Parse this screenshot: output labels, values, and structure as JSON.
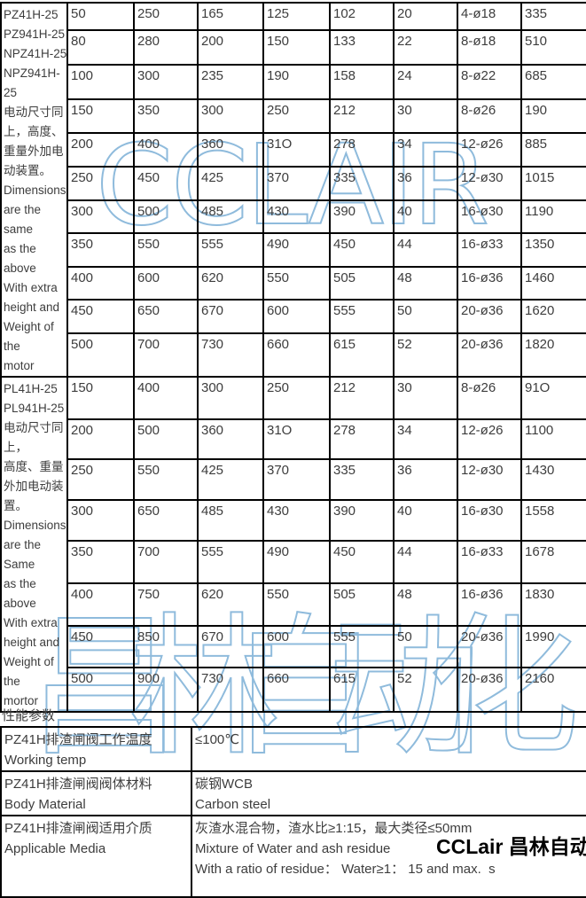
{
  "watermarks": {
    "latin": "CCLAIR",
    "cjk": "昌林自动化",
    "stroke_color": "#8fbbdc"
  },
  "brand": {
    "text": "CCLair 昌林自动化"
  },
  "section_label": "性能参数",
  "spec_table": {
    "groups": [
      {
        "label": "PZ41H-25\nPZ941H-25\nNPZ41H-25\nNPZ941H-\n25\n电动尺寸同\n上，高度、\n重量外加电\n动装置。\nDimensions\nare the\nsame\nas the\nabove\nWith extra\nheight and\nWeight of\nthe\nmotor",
        "rows": [
          [
            "50",
            "250",
            "165",
            "125",
            "102",
            "20",
            "4-ø18",
            "335"
          ],
          [
            "80",
            "280",
            "200",
            "150",
            "133",
            "22",
            "8-ø18",
            "510"
          ],
          [
            "100",
            "300",
            "235",
            "190",
            "158",
            "24",
            "8-ø22",
            "685"
          ],
          [
            "150",
            "350",
            "300",
            "250",
            "212",
            "30",
            "8-ø26",
            "190"
          ],
          [
            "200",
            "400",
            "360",
            "31O",
            "278",
            "34",
            "12-ø26",
            "885"
          ],
          [
            "250",
            "450",
            "425",
            "370",
            "335",
            "36",
            "12-ø30",
            "1015"
          ],
          [
            "300",
            "500",
            "485",
            "430",
            "390",
            "40",
            "16-ø30",
            "1190"
          ],
          [
            "350",
            "550",
            "555",
            "490",
            "450",
            "44",
            "16-ø33",
            "1350"
          ],
          [
            "400",
            "600",
            "620",
            "550",
            "505",
            "48",
            "16-ø36",
            "1460"
          ],
          [
            "450",
            "650",
            "670",
            "600",
            "555",
            "50",
            "20-ø36",
            "1620"
          ],
          [
            "500",
            "700",
            "730",
            "660",
            "615",
            "52",
            "20-ø36",
            "1820"
          ]
        ]
      },
      {
        "label": "PL41H-25\nPL941H-25\n电动尺寸同\n上，\n高度、重量\n外加电动装\n置。\nDimensions\nare the\nSame\nas the\nabove\nWith extra\nheight and\nWeight of\nthe\nmortor",
        "rows": [
          [
            "150",
            "400",
            "300",
            "250",
            "212",
            "30",
            "8-ø26",
            "91O"
          ],
          [
            "200",
            "500",
            "360",
            "31O",
            "278",
            "34",
            "12-ø26",
            "1100"
          ],
          [
            "250",
            "550",
            "425",
            "370",
            "335",
            "36",
            "12-ø30",
            "1430"
          ],
          [
            "300",
            "650",
            "485",
            "430",
            "390",
            "40",
            "16-ø30",
            "1558"
          ],
          [
            "350",
            "700",
            "555",
            "490",
            "450",
            "44",
            "16-ø33",
            "1678"
          ],
          [
            "400",
            "750",
            "620",
            "550",
            "505",
            "48",
            "16-ø36",
            "1830"
          ],
          [
            "450",
            "850",
            "670",
            "600",
            "555",
            "50",
            "20-ø36",
            "1990"
          ],
          [
            "500",
            "900",
            "730",
            "660",
            "615",
            "52",
            "20-ø36",
            "2160"
          ]
        ]
      }
    ]
  },
  "params_table": {
    "rows": [
      {
        "label": "PZ41H排渣闸阀工作温度\nWorking temp",
        "value": "≤100℃"
      },
      {
        "label": "PZ41H排渣闸阀阀体材料\nBody Material",
        "value": "碳钢WCB\nCarbon steel"
      },
      {
        "label": "PZ41H排渣闸阀适用介质\nApplicable Media",
        "value": "灰渣水混合物，渣水比≥1:15，最大类径≤50mm\nMixture of Water and ash residue\nWith a ratio of residue： Water≥1： 15 and max.  s"
      }
    ]
  }
}
